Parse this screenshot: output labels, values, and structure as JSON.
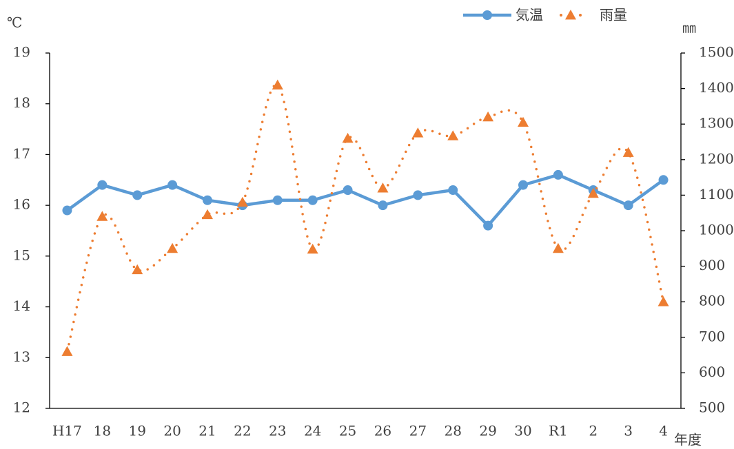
{
  "chart_data": {
    "type": "line",
    "y_label": "℃",
    "y2_label": "㎜",
    "x_label": "年度",
    "categories": [
      "H17",
      "18",
      "19",
      "20",
      "21",
      "22",
      "23",
      "24",
      "25",
      "26",
      "27",
      "28",
      "29",
      "30",
      "R1",
      "2",
      "3",
      "4"
    ],
    "series": [
      {
        "name": "気温",
        "color": "#5b9bd5",
        "marker": "circle",
        "line": "solid",
        "axis": "y",
        "values": [
          15.9,
          16.4,
          16.2,
          16.4,
          16.1,
          16.0,
          16.1,
          16.1,
          16.3,
          16.0,
          16.2,
          16.3,
          15.6,
          16.4,
          16.6,
          16.3,
          16.0,
          16.5
        ]
      },
      {
        "name": "雨量",
        "color": "#ed7d31",
        "marker": "triangle",
        "line": "dotted-smooth",
        "axis": "y2",
        "values": [
          660,
          1040,
          890,
          950,
          1045,
          1080,
          1410,
          948,
          1260,
          1120,
          1275,
          1267,
          1320,
          1305,
          950,
          1105,
          1220,
          800
        ]
      }
    ],
    "ylim": [
      12,
      19
    ],
    "yticks": [
      12,
      13,
      14,
      15,
      16,
      17,
      18,
      19
    ],
    "y2lim": [
      500,
      1500
    ],
    "y2ticks": [
      500,
      600,
      700,
      800,
      900,
      1000,
      1100,
      1200,
      1300,
      1400,
      1500
    ],
    "grid": false,
    "legend": "top-right"
  }
}
